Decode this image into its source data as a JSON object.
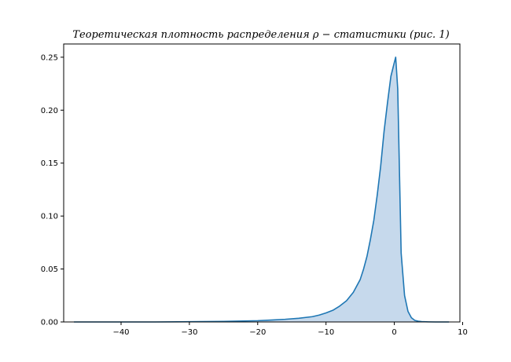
{
  "chart_data": {
    "type": "area",
    "title": "Теоретическая   плотность   распределения   ρ − статистики (рис. 1)",
    "xlabel": "",
    "ylabel": "",
    "xlim": [
      -48.4,
      9.6
    ],
    "ylim": [
      0,
      0.2625
    ],
    "xticks": [
      -40,
      -30,
      -20,
      -10,
      0,
      10
    ],
    "xtick_labels": [
      "−40",
      "−30",
      "−20",
      "−10",
      "0",
      "10"
    ],
    "yticks": [
      0,
      0.05,
      0.1,
      0.15,
      0.2,
      0.25
    ],
    "ytick_labels": [
      "0.00",
      "0.05",
      "0.10",
      "0.15",
      "0.20",
      "0.25"
    ],
    "grid": false,
    "legend": "none",
    "colors": {
      "line": "#1f77b4",
      "fill": "#c6d9ec"
    },
    "series": [
      {
        "x": [
          -46.9,
          -40,
          -35,
          -30,
          -25,
          -20,
          -18,
          -16,
          -14,
          -12,
          -11,
          -10,
          -9,
          -8,
          -7,
          -6,
          -5,
          -4.5,
          -4,
          -3.5,
          -3,
          -2.5,
          -2,
          -1.5,
          -1,
          -0.5,
          0,
          0.2,
          0.5,
          1,
          1.5,
          2,
          2.5,
          3,
          3.5,
          4,
          5,
          6,
          8
        ],
        "y": [
          0.0,
          0.0,
          0.0,
          0.0002,
          0.0005,
          0.0012,
          0.0018,
          0.0025,
          0.0035,
          0.005,
          0.0065,
          0.0085,
          0.011,
          0.015,
          0.02,
          0.028,
          0.04,
          0.05,
          0.062,
          0.078,
          0.096,
          0.12,
          0.147,
          0.18,
          0.207,
          0.232,
          0.245,
          0.25,
          0.22,
          0.065,
          0.025,
          0.01,
          0.004,
          0.0015,
          0.0007,
          0.0003,
          0.0001,
          0.0,
          0.0
        ]
      }
    ]
  }
}
